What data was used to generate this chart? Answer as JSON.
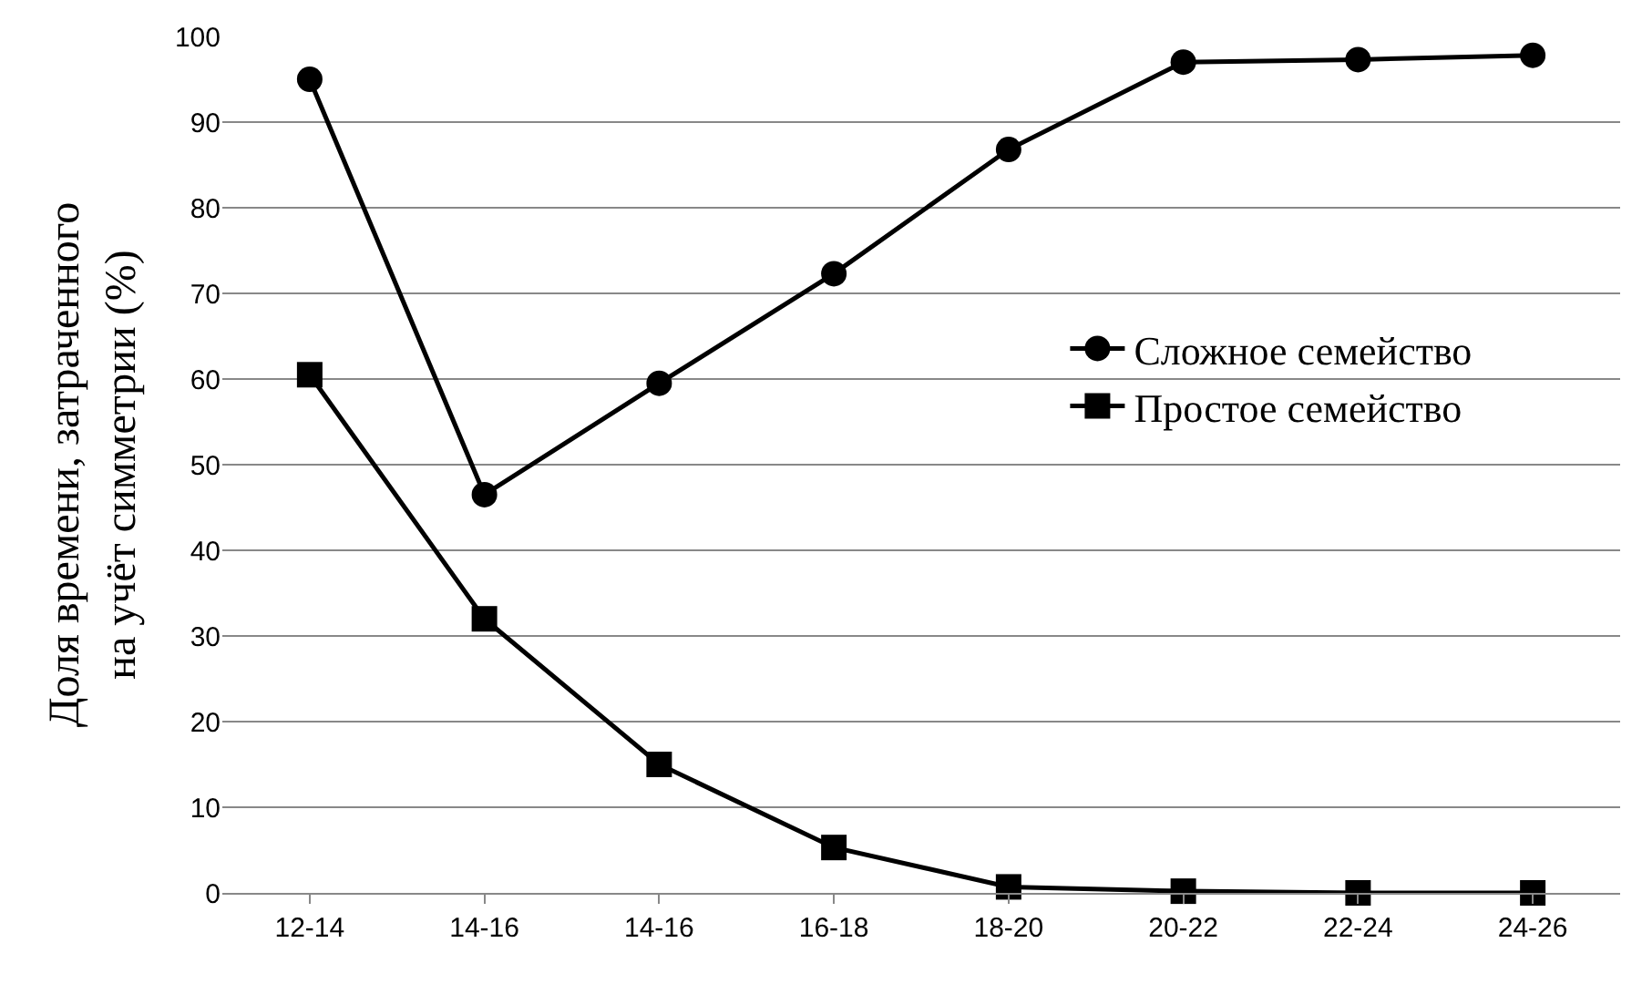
{
  "chart_data": {
    "type": "line",
    "ylabel": "Доля времени, затраченного\nна учёт симметрии (%)",
    "categories": [
      "12-14",
      "14-16",
      "14-16",
      "16-18",
      "18-20",
      "20-22",
      "22-24",
      "24-26"
    ],
    "series": [
      {
        "name": "Сложное семейство",
        "color": "#000000",
        "marker": "circle",
        "values": [
          95,
          46.5,
          59.5,
          72.3,
          86.8,
          97,
          97.3,
          97.8
        ]
      },
      {
        "name": "Простое семейство",
        "color": "#000000",
        "marker": "square",
        "values": [
          60.5,
          32,
          15,
          5.3,
          0.7,
          0.2,
          0,
          0
        ]
      }
    ],
    "ylim": [
      0,
      100
    ],
    "yticks": [
      0,
      10,
      20,
      30,
      40,
      50,
      60,
      70,
      80,
      90,
      100
    ],
    "grid": "y",
    "legend": "right",
    "line_style": "solid"
  }
}
